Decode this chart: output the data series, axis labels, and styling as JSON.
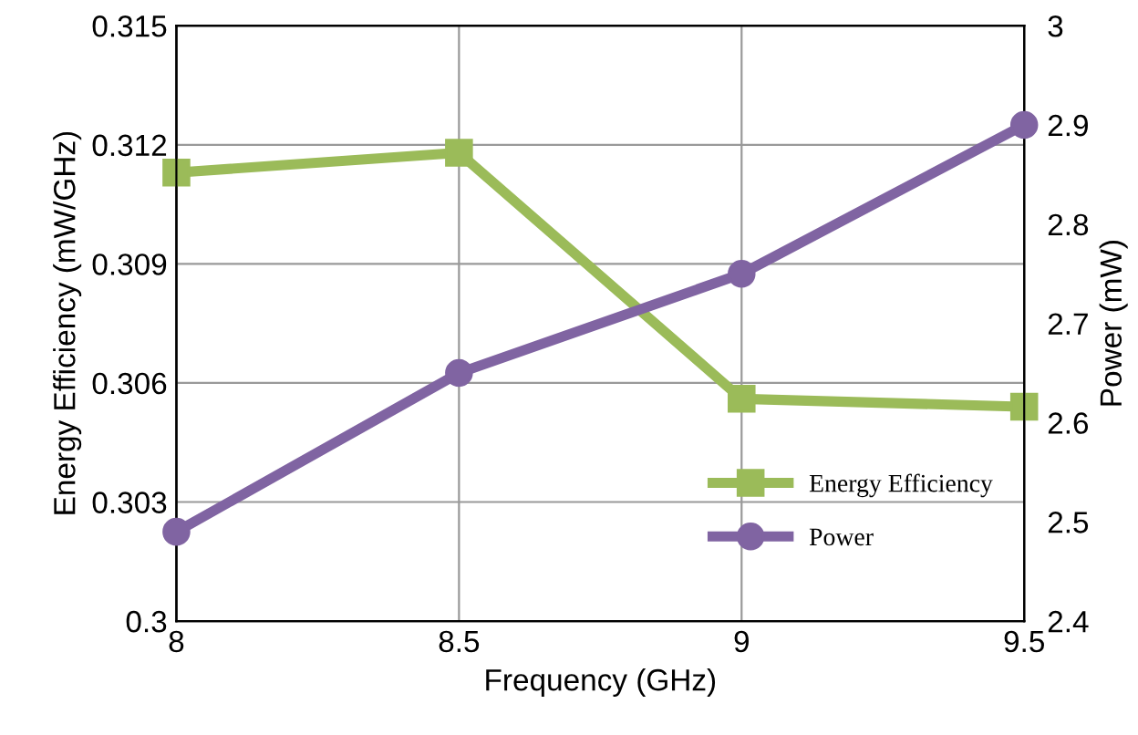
{
  "chart_data": {
    "type": "line",
    "xlabel": "Frequency (GHz)",
    "ylabel": "Energy Efficiency (mW/GHz)",
    "y2label": "Power (mW)",
    "x": [
      8,
      8.5,
      9,
      9.5
    ],
    "series": [
      {
        "name": "Energy Efficiency",
        "color": "#9bbb59",
        "marker": "square",
        "values": [
          0.3113,
          0.3118,
          0.3056,
          0.3054
        ]
      },
      {
        "name": "Power",
        "color": "#8064a2",
        "marker": "circle",
        "axis": "y2",
        "values": [
          2.49,
          2.65,
          2.75,
          2.9
        ]
      }
    ],
    "xlim": [
      8,
      9.5
    ],
    "xticks": [
      8,
      8.5,
      9,
      9.5
    ],
    "ylim": [
      0.3,
      0.315
    ],
    "yticks": [
      0.3,
      0.303,
      0.306,
      0.309,
      0.312,
      0.315
    ],
    "y2lim": [
      2.4,
      3
    ],
    "y2ticks": [
      2.4,
      2.5,
      2.6,
      2.7,
      2.8,
      2.9,
      3
    ],
    "grid": true,
    "legend": "bottom right",
    "line_style": "solid"
  }
}
